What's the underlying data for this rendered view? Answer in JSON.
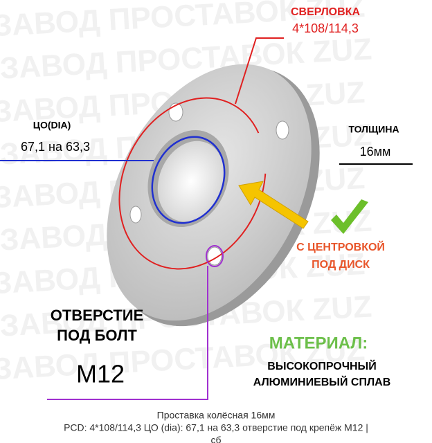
{
  "header": {
    "drilling_label": "СВЕРЛОВКА",
    "drilling_value": "4*108/114,3"
  },
  "bore": {
    "label": "ЦО(DIA)",
    "value": "67,1 на 63,3"
  },
  "thickness": {
    "label": "ТОЛЩИНА",
    "value": "16мм"
  },
  "centering": {
    "line1": "С ЦЕНТРОВКОЙ",
    "line2": "ПОД ДИСК"
  },
  "bolt": {
    "line1": "ОТВЕРСТИЕ",
    "line2": "ПОД БОЛТ",
    "value": "М12"
  },
  "material": {
    "label": "МАТЕРИАЛ:",
    "line1": "ВЫСОКОПРОЧНЫЙ",
    "line2": "АЛЮМИНИЕВЫЙ СПЛАВ"
  },
  "watermark": "ЗАВОД ПРОСТАВОК ZUZ",
  "caption": {
    "title": "Проставка колёсная 16мм",
    "line1": "PCD: 4*108/114,3 ЦО (dia): 67,1 на 63,3 отверстие под крепёж М12 |",
    "line2": "сб"
  }
}
